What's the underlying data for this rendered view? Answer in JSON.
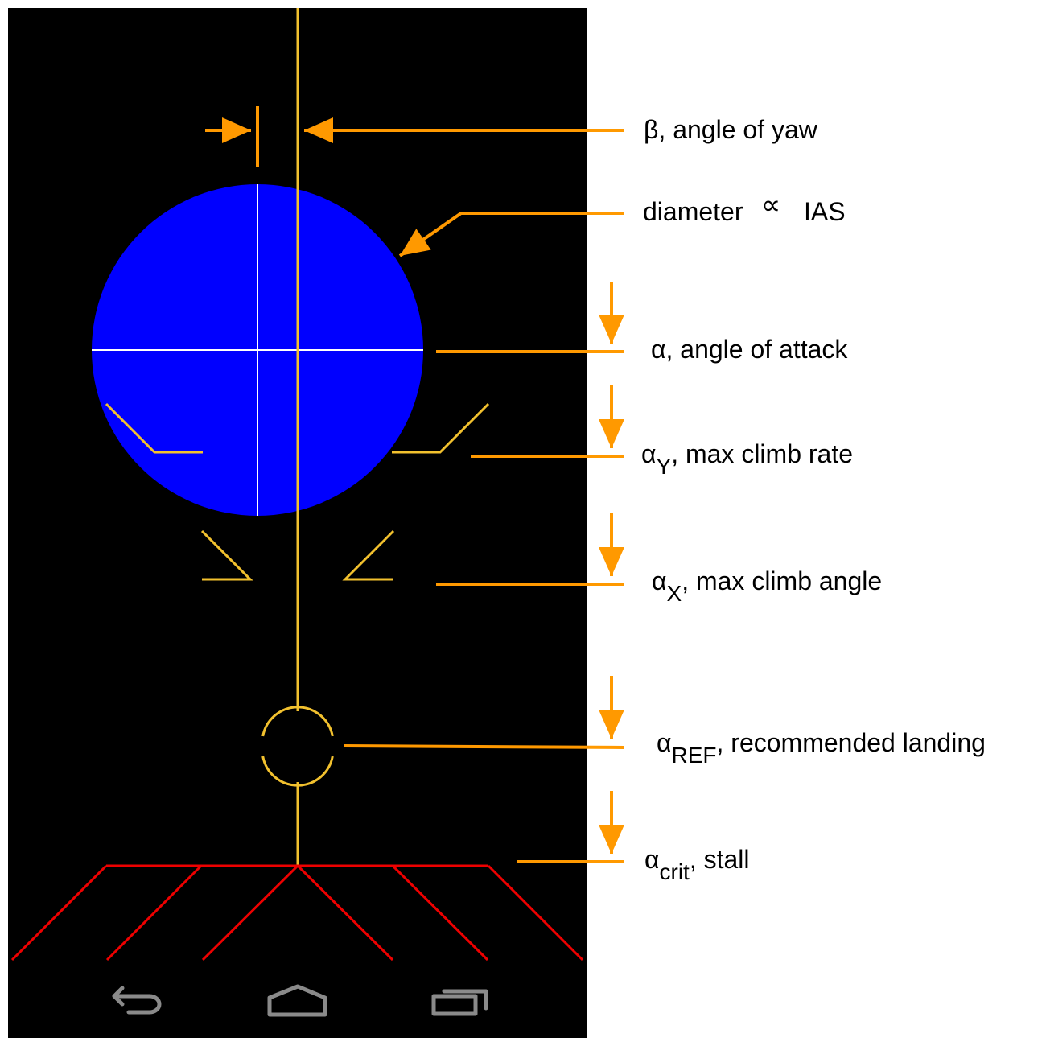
{
  "colors": {
    "screen_background": "#000000",
    "airspeed_disc": "#0000ff",
    "reference_lines": "#f2c12e",
    "stall_lines": "#ee0000",
    "annotation": "#ff9900",
    "crosshair": "#ffffff",
    "nav_buttons": "#8a8a8a"
  },
  "labels": {
    "yaw": {
      "symbol": "β",
      "text": ", angle of yaw"
    },
    "diameter": {
      "text_before": "diameter",
      "symbol": "∝",
      "text_after": "IAS"
    },
    "aoa": {
      "symbol": "α",
      "text": ", angle of attack"
    },
    "max_climb_rate": {
      "symbol": "α",
      "subscript": "Y",
      "text": ", max climb rate"
    },
    "max_climb_angle": {
      "symbol": "α",
      "subscript": "X",
      "text": ", max climb angle"
    },
    "landing": {
      "symbol": "α",
      "subscript": "REF",
      "text": ", recommended landing"
    },
    "stall": {
      "symbol": "α",
      "subscript": "crit",
      "text": ", stall"
    }
  },
  "nav_bar": {
    "buttons": [
      "back-icon",
      "home-icon",
      "recents-icon"
    ]
  }
}
